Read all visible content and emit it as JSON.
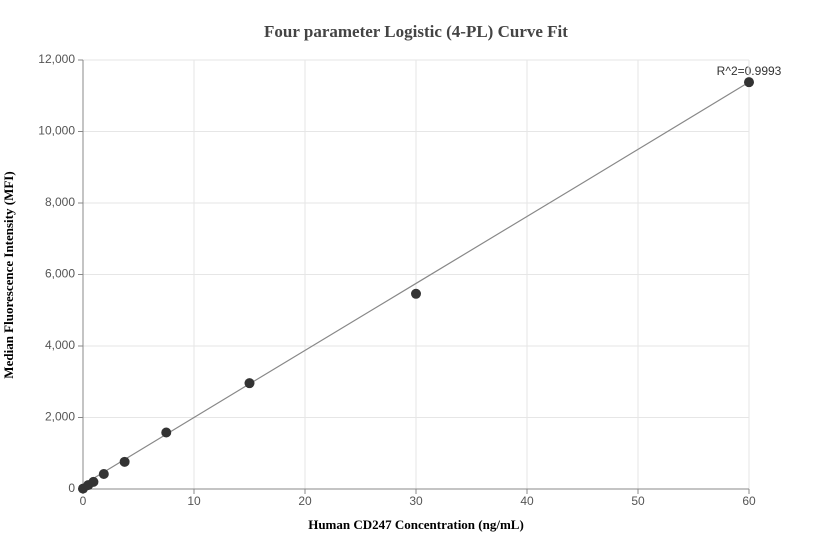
{
  "chart_data": {
    "type": "scatter",
    "title": "Four parameter Logistic (4-PL) Curve Fit",
    "xlabel": "Human CD247 Concentration (ng/mL)",
    "ylabel": "Median Fluorescence Intensity (MFI)",
    "annotation": "R^2=0.9993",
    "xlim": [
      0,
      60
    ],
    "ylim": [
      0,
      12000
    ],
    "xticks": [
      0,
      10,
      20,
      30,
      40,
      50,
      60
    ],
    "yticks": [
      0,
      {
        "value": 2000,
        "label": "2,000"
      },
      {
        "value": 4000,
        "label": "4,000"
      },
      {
        "value": 6000,
        "label": "6,000"
      },
      {
        "value": 8000,
        "label": "8,000"
      },
      {
        "value": 10000,
        "label": "10,000"
      },
      {
        "value": 12000,
        "label": "12,000"
      }
    ],
    "grid": true,
    "series": [
      {
        "type": "line",
        "color": "#888888",
        "x": [
          0,
          15,
          30,
          45,
          60
        ],
        "values": [
          120,
          2940,
          5750,
          8560,
          11380
        ]
      },
      {
        "type": "scatter",
        "color": "#333333",
        "x": [
          0,
          0.47,
          0.94,
          1.875,
          3.75,
          7.5,
          15,
          30,
          60
        ],
        "values": [
          10,
          110,
          200,
          420,
          760,
          1580,
          2960,
          5460,
          11380
        ]
      }
    ]
  }
}
